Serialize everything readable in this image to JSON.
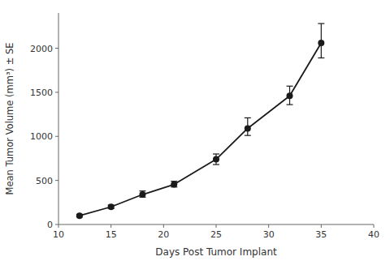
{
  "chart_data": {
    "type": "line",
    "xlabel": "Days Post Tumor Implant",
    "ylabel": "Mean Tumor Volume (mm³) ± SE",
    "x": [
      12,
      15,
      18,
      21,
      25,
      28,
      32,
      35
    ],
    "values": [
      100,
      200,
      340,
      455,
      740,
      1090,
      1460,
      2060
    ],
    "error_upper": [
      15,
      20,
      40,
      35,
      60,
      120,
      110,
      220
    ],
    "error_lower": [
      15,
      20,
      30,
      30,
      60,
      80,
      100,
      170
    ],
    "xlim": [
      10,
      40
    ],
    "ylim": [
      0,
      2400
    ],
    "xticks": [
      10,
      15,
      20,
      25,
      30,
      35,
      40
    ],
    "yticks": [
      0,
      500,
      1000,
      1500,
      2000
    ],
    "color": "#1a1a1a",
    "marker": "circle",
    "grid": false
  }
}
